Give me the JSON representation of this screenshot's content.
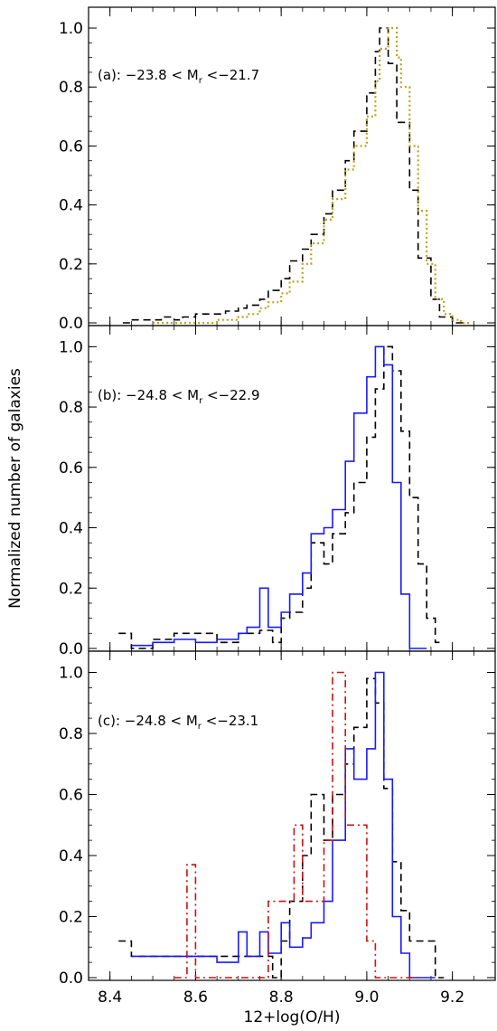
{
  "figure": {
    "ylabel": "Normalized number of galaxies",
    "xlabel": "12+log(O/H)"
  },
  "colors": {
    "black_dashed": "#000000",
    "olive_dotted": "#b8a320",
    "blue_solid": "#1a1aff",
    "red_dashdot": "#cc1111"
  },
  "chart_data": [
    {
      "type": "line",
      "annotation": "(a): −23.8 < M",
      "annotation_sub": "r",
      "annotation_tail": " <−21.7",
      "xlim": [
        8.35,
        9.3
      ],
      "ylim": [
        0.0,
        1.04
      ],
      "yticks": [
        "0.0",
        "0.2",
        "0.4",
        "0.6",
        "0.8",
        "1.0"
      ],
      "grid": false,
      "series": [
        {
          "style": "dashed-step",
          "color": "#000000",
          "x": [
            8.43,
            8.45,
            8.48,
            8.5,
            8.52,
            8.55,
            8.57,
            8.6,
            8.62,
            8.65,
            8.67,
            8.7,
            8.72,
            8.75,
            8.77,
            8.8,
            8.82,
            8.85,
            8.87,
            8.9,
            8.92,
            8.95,
            8.97,
            9.0,
            9.02,
            9.03,
            9.05,
            9.07,
            9.1,
            9.12,
            9.15,
            9.17,
            9.2
          ],
          "y": [
            0.0,
            0.01,
            0.01,
            0.01,
            0.02,
            0.01,
            0.02,
            0.03,
            0.03,
            0.03,
            0.04,
            0.05,
            0.06,
            0.08,
            0.11,
            0.15,
            0.21,
            0.25,
            0.3,
            0.37,
            0.45,
            0.55,
            0.65,
            0.78,
            0.92,
            1.0,
            0.88,
            0.68,
            0.45,
            0.22,
            0.08,
            0.02,
            0.0
          ]
        },
        {
          "style": "dotted-step",
          "color": "#b8a320",
          "x": [
            8.5,
            8.55,
            8.6,
            8.65,
            8.7,
            8.72,
            8.75,
            8.77,
            8.8,
            8.82,
            8.85,
            8.87,
            8.9,
            8.92,
            8.95,
            8.97,
            9.0,
            9.02,
            9.03,
            9.05,
            9.07,
            9.08,
            9.1,
            9.12,
            9.14,
            9.16,
            9.18,
            9.2,
            9.22
          ],
          "y": [
            0.0,
            0.0,
            0.0,
            0.01,
            0.02,
            0.03,
            0.05,
            0.07,
            0.1,
            0.14,
            0.2,
            0.27,
            0.35,
            0.42,
            0.52,
            0.6,
            0.7,
            0.82,
            0.93,
            1.0,
            0.9,
            0.8,
            0.6,
            0.38,
            0.2,
            0.08,
            0.03,
            0.01,
            0.0
          ]
        }
      ]
    },
    {
      "type": "line",
      "annotation": "(b): −24.8 < M",
      "annotation_sub": "r",
      "annotation_tail": " <−22.9",
      "xlim": [
        8.35,
        9.3
      ],
      "ylim": [
        0.0,
        1.04
      ],
      "yticks": [
        "0.0",
        "0.2",
        "0.4",
        "0.6",
        "0.8",
        "1.0"
      ],
      "grid": false,
      "series": [
        {
          "style": "dashed-step",
          "color": "#000000",
          "x": [
            8.42,
            8.45,
            8.5,
            8.55,
            8.6,
            8.65,
            8.7,
            8.75,
            8.78,
            8.8,
            8.82,
            8.85,
            8.87,
            8.9,
            8.92,
            8.95,
            8.97,
            9.0,
            9.02,
            9.04,
            9.06,
            9.08,
            9.1,
            9.12,
            9.14,
            9.16
          ],
          "y": [
            0.05,
            0.0,
            0.03,
            0.05,
            0.05,
            0.02,
            0.05,
            0.06,
            0.02,
            0.1,
            0.12,
            0.2,
            0.35,
            0.28,
            0.38,
            0.45,
            0.55,
            0.7,
            0.86,
            1.0,
            0.92,
            0.72,
            0.5,
            0.28,
            0.1,
            0.02
          ]
        },
        {
          "style": "solid-step",
          "color": "#1a1aff",
          "x": [
            8.45,
            8.5,
            8.55,
            8.6,
            8.65,
            8.7,
            8.72,
            8.75,
            8.77,
            8.8,
            8.82,
            8.85,
            8.87,
            8.9,
            8.92,
            8.95,
            8.97,
            9.0,
            9.02,
            9.04,
            9.06,
            9.08,
            9.1,
            9.12
          ],
          "y": [
            0.01,
            0.02,
            0.03,
            0.02,
            0.03,
            0.05,
            0.07,
            0.2,
            0.07,
            0.12,
            0.18,
            0.25,
            0.38,
            0.4,
            0.46,
            0.62,
            0.78,
            0.9,
            1.0,
            0.94,
            0.55,
            0.18,
            0.0,
            0.0
          ]
        }
      ]
    },
    {
      "type": "line",
      "annotation": "(c): −24.8 < M",
      "annotation_sub": "r",
      "annotation_tail": " <−23.1",
      "xlim": [
        8.35,
        9.3
      ],
      "ylim": [
        0.0,
        1.04
      ],
      "yticks": [
        "0.0",
        "0.2",
        "0.4",
        "0.6",
        "0.8",
        "1.0"
      ],
      "xticks": [
        "8.4",
        "8.6",
        "8.8",
        "9.0",
        "9.2"
      ],
      "grid": false,
      "series": [
        {
          "style": "dashed-step",
          "color": "#000000",
          "x": [
            8.42,
            8.45,
            8.5,
            8.55,
            8.6,
            8.65,
            8.7,
            8.75,
            8.78,
            8.8,
            8.82,
            8.85,
            8.87,
            8.9,
            8.92,
            8.95,
            8.97,
            9.0,
            9.02,
            9.04,
            9.06,
            9.08,
            9.1,
            9.12,
            9.14,
            9.16
          ],
          "y": [
            0.12,
            0.07,
            0.07,
            0.07,
            0.07,
            0.07,
            0.07,
            0.07,
            0.0,
            0.12,
            0.25,
            0.4,
            0.6,
            0.45,
            0.6,
            0.7,
            0.82,
            0.98,
            0.9,
            0.62,
            0.38,
            0.22,
            0.12,
            0.12,
            0.12,
            0.0
          ]
        },
        {
          "style": "solid-step",
          "color": "#1a1aff",
          "x": [
            8.45,
            8.5,
            8.55,
            8.6,
            8.65,
            8.7,
            8.72,
            8.75,
            8.77,
            8.8,
            8.82,
            8.85,
            8.87,
            8.9,
            8.92,
            8.95,
            8.97,
            9.0,
            9.02,
            9.04,
            9.06,
            9.08,
            9.1,
            9.12,
            9.14
          ],
          "y": [
            0.07,
            0.07,
            0.07,
            0.07,
            0.05,
            0.15,
            0.07,
            0.15,
            0.08,
            0.18,
            0.1,
            0.13,
            0.18,
            0.25,
            0.45,
            0.75,
            0.65,
            0.75,
            1.0,
            0.65,
            0.2,
            0.08,
            0.0,
            0.0,
            0.0
          ]
        },
        {
          "style": "dashdot-step",
          "color": "#cc1111",
          "x": [
            8.55,
            8.58,
            8.6,
            8.62,
            8.65,
            8.7,
            8.75,
            8.77,
            8.8,
            8.83,
            8.85,
            8.87,
            8.9,
            8.92,
            8.95,
            8.97,
            9.0,
            9.02,
            9.04,
            9.06,
            9.08,
            9.1
          ],
          "y": [
            0.0,
            0.37,
            0.0,
            0.0,
            0.0,
            0.0,
            0.0,
            0.25,
            0.25,
            0.5,
            0.25,
            0.25,
            0.45,
            1.0,
            0.5,
            0.5,
            0.12,
            0.0,
            0.0,
            0.0,
            0.0,
            0.0
          ]
        }
      ]
    }
  ]
}
